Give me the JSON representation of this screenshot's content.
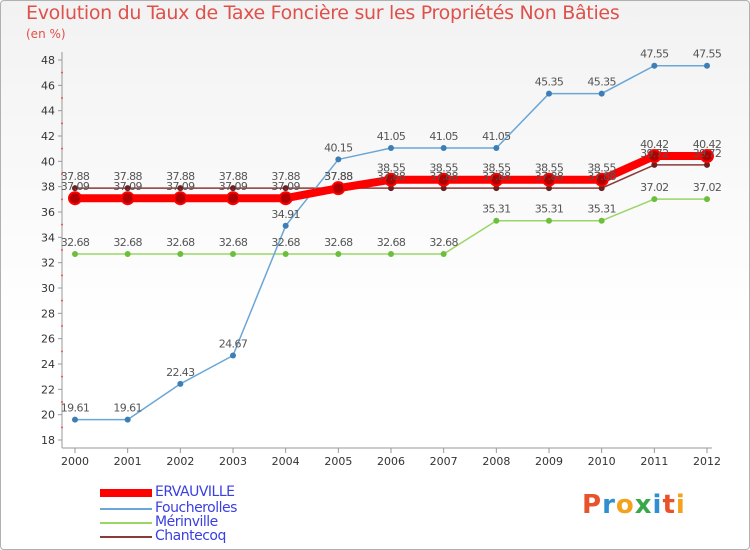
{
  "chart_data": {
    "type": "line",
    "title": "Evolution du Taux de Taxe Foncière sur les Propriétés Non Bâties",
    "ylabel": "(en %)",
    "xlabel": "",
    "ylim": [
      18,
      48
    ],
    "yticks": [
      18,
      20,
      22,
      24,
      26,
      28,
      30,
      32,
      34,
      36,
      38,
      40,
      42,
      44,
      46,
      48
    ],
    "categories": [
      "2000",
      "2001",
      "2002",
      "2003",
      "2004",
      "2005",
      "2006",
      "2007",
      "2008",
      "2009",
      "2010",
      "2011",
      "2012"
    ],
    "series": [
      {
        "name": "Chantecoq",
        "color": "#7a2e2e",
        "values": [
          37.88,
          37.88,
          37.88,
          37.88,
          37.88,
          37.88,
          37.88,
          37.88,
          37.88,
          37.88,
          37.88,
          39.72,
          39.72
        ],
        "labels": [
          "37.88",
          "37.88",
          "37.88",
          "37.88",
          "37.88",
          "37.88",
          "37.88",
          "37.88",
          "37.88",
          "37.88",
          "37.88",
          "39.72",
          "39.72"
        ]
      },
      {
        "name": "Mérinville",
        "color": "#8fd45a",
        "values": [
          32.68,
          32.68,
          32.68,
          32.68,
          32.68,
          32.68,
          32.68,
          32.68,
          35.31,
          35.31,
          35.31,
          37.02,
          37.02
        ],
        "labels": [
          "32.68",
          "32.68",
          "32.68",
          "32.68",
          "32.68",
          "32.68",
          "32.68",
          "32.68",
          "35.31",
          "35.31",
          "35.31",
          "37.02",
          "37.02"
        ]
      },
      {
        "name": "Foucherolles",
        "color": "#6aa6d6",
        "values": [
          19.61,
          19.61,
          22.43,
          24.67,
          34.91,
          40.15,
          41.05,
          41.05,
          41.05,
          45.35,
          45.35,
          47.55,
          47.55
        ],
        "labels": [
          "19.61",
          "19.61",
          "22.43",
          "24.67",
          "34.91",
          "40.15",
          "41.05",
          "41.05",
          "41.05",
          "45.35",
          "45.35",
          "47.55",
          "47.55"
        ]
      },
      {
        "name": "ERVAUVILLE",
        "color": "#ff0000",
        "values": [
          37.09,
          37.09,
          37.09,
          37.09,
          37.09,
          37.88,
          38.55,
          38.55,
          38.55,
          38.55,
          38.55,
          40.42,
          40.42
        ],
        "labels": [
          "37.09",
          "37.09",
          "37.09",
          "37.09",
          "37.09",
          "37.88",
          "38.55",
          "38.55",
          "38.55",
          "38.55",
          "38.55",
          "40.42",
          "40.42"
        ]
      }
    ],
    "legend": [
      "ERVAUVILLE",
      "Foucherolles",
      "Mérinville",
      "Chantecoq"
    ],
    "legend_position": "bottom-left",
    "grid": false
  },
  "logo": {
    "letters": [
      "P",
      "r",
      "o",
      "x",
      "i",
      "t",
      "i"
    ],
    "colors": [
      "#e8532b",
      "#2f8fd0",
      "#f2a21c",
      "#3aa84a",
      "#2f8fd0",
      "#e8532b",
      "#f2a21c"
    ]
  }
}
